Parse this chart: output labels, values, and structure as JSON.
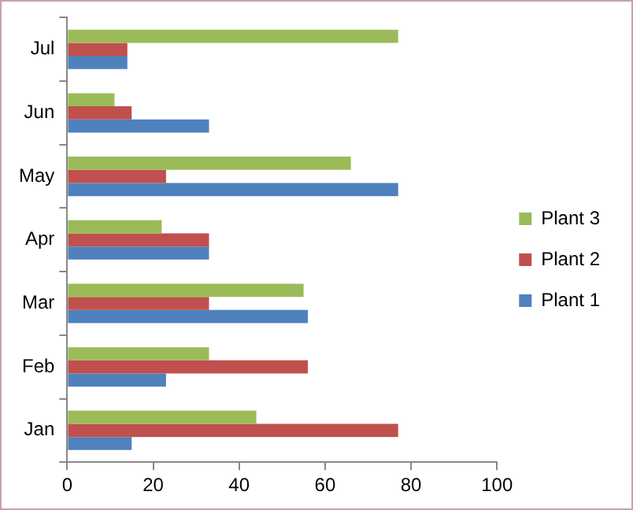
{
  "chart_data": {
    "type": "bar",
    "orientation": "horizontal",
    "categories": [
      "Jul",
      "Jun",
      "May",
      "Apr",
      "Mar",
      "Feb",
      "Jan"
    ],
    "series": [
      {
        "name": "Plant 3",
        "color": "#9bbb59",
        "values": [
          77,
          11,
          66,
          22,
          55,
          33,
          44
        ]
      },
      {
        "name": "Plant 2",
        "color": "#c0504d",
        "values": [
          14,
          15,
          23,
          33,
          33,
          56,
          77
        ]
      },
      {
        "name": "Plant 1",
        "color": "#4f81bd",
        "values": [
          14,
          33,
          77,
          33,
          56,
          23,
          15
        ]
      }
    ],
    "xlim": [
      0,
      100
    ],
    "xticks": [
      0,
      20,
      40,
      60,
      80,
      100
    ],
    "grid": false,
    "legend": "right"
  }
}
